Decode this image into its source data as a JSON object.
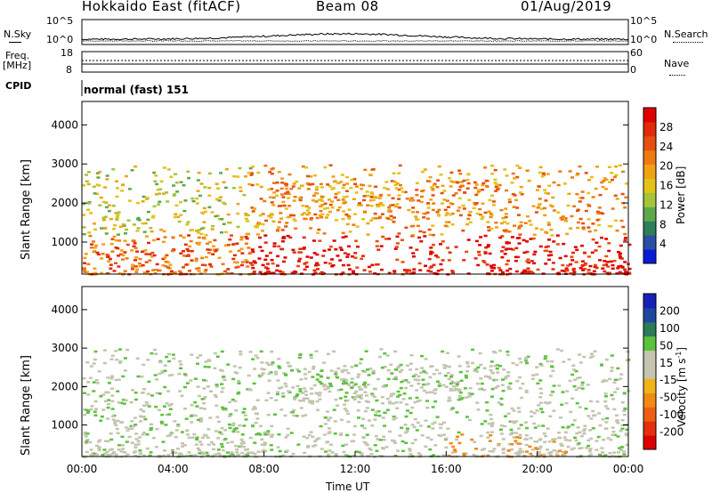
{
  "header": {
    "station": "Hokkaido East (fitACF)",
    "beam": "Beam 08",
    "date": "01/Aug/2019"
  },
  "noise_panel": {
    "left_label": "N.Sky",
    "right_label": "N.Search",
    "left_ticks": [
      "10^5",
      "10^0"
    ],
    "right_ticks": [
      "10^5",
      "10^0"
    ]
  },
  "freq_panel": {
    "left_label_1": "Freq.",
    "left_label_2": "[MHz]",
    "right_label": "Nave",
    "left_ticks": [
      "18",
      "8"
    ],
    "right_ticks": [
      "60",
      "0"
    ]
  },
  "cpid_panel": {
    "left_label": "CPID",
    "text": "normal (fast) 151"
  },
  "chart_data": [
    {
      "type": "heatmap",
      "name": "power",
      "ylabel": "Slant Range [km]",
      "y_ticks": [
        "1000",
        "2000",
        "3000",
        "4000"
      ],
      "ylim": [
        180,
        4600
      ],
      "colorbar": {
        "label": "Power [dB]",
        "ticks": [
          "4",
          "8",
          "12",
          "16",
          "20",
          "24",
          "28"
        ],
        "range": [
          0,
          32
        ],
        "colors": [
          "#0a1bd6",
          "#2a4fa8",
          "#2e7d5b",
          "#5fa84a",
          "#a5c43a",
          "#e3c21a",
          "#f0a214",
          "#ee7a12",
          "#e5500f",
          "#e22a0c",
          "#e00000"
        ]
      }
    },
    {
      "type": "heatmap",
      "name": "velocity",
      "ylabel": "Slant Range [km]",
      "y_ticks": [
        "1000",
        "2000",
        "3000",
        "4000"
      ],
      "ylim": [
        180,
        4600
      ],
      "colorbar": {
        "label": "Velocity [m s^-1]",
        "label_main": "Velocity [m s",
        "label_exp": "-1",
        "label_end": "]",
        "ticks": [
          "200",
          "100",
          "50",
          "15",
          "-15",
          "-50",
          "-100",
          "-200"
        ],
        "colors": [
          "#1820b8",
          "#1f47a0",
          "#2b7a58",
          "#5cc23c",
          "#c4c4b0",
          "#c4c4b0",
          "#f0b418",
          "#f08a14",
          "#ee5e12",
          "#e52f0c",
          "#dd0000"
        ]
      }
    }
  ],
  "x_axis": {
    "label": "Time UT",
    "ticks": [
      "00:00",
      "04:00",
      "08:00",
      "12:00",
      "16:00",
      "20:00",
      "00:00"
    ]
  }
}
